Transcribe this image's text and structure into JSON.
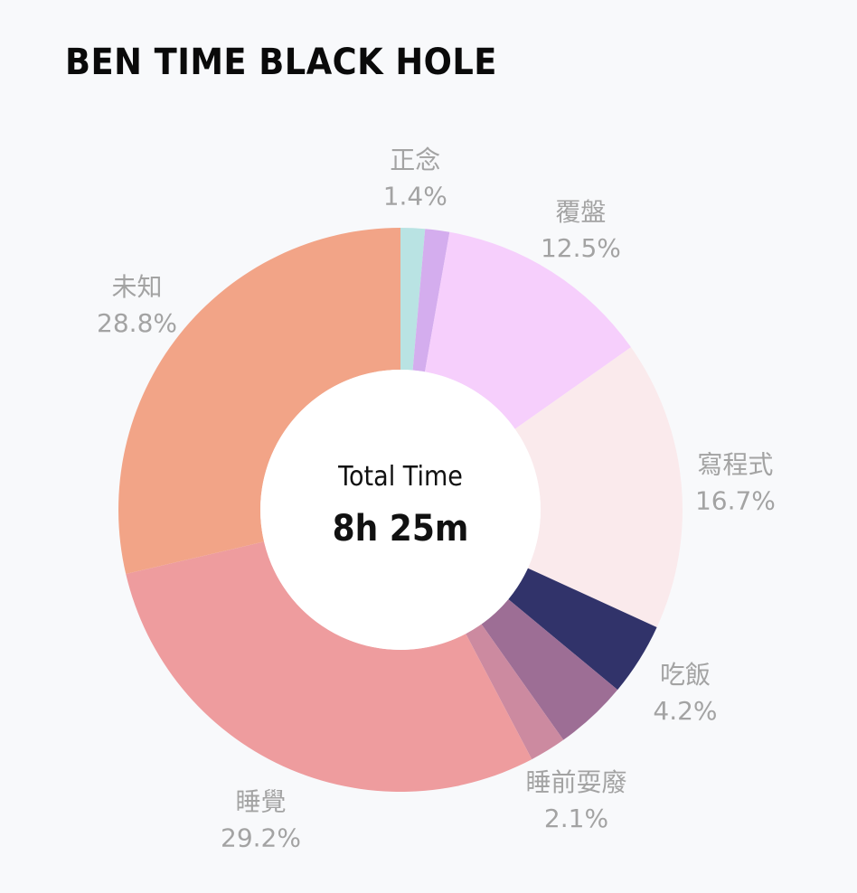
{
  "title": "BEN TIME BLACK HOLE",
  "center": {
    "title": "Total Time",
    "value": "8h 25m"
  },
  "label_color": "#a3a3a3",
  "chart_data": {
    "type": "pie",
    "donut": true,
    "legend": "none",
    "slices": [
      {
        "name": "正念",
        "value": 1.4,
        "pct": "1.4%",
        "color": "#b9e3e3"
      },
      {
        "name": "",
        "value": 1.4,
        "pct": "",
        "color": "#d4adee"
      },
      {
        "name": "覆盤",
        "value": 12.5,
        "pct": "12.5%",
        "color": "#f6cffc"
      },
      {
        "name": "寫程式",
        "value": 16.7,
        "pct": "16.7%",
        "color": "#faeaec"
      },
      {
        "name": "吃飯",
        "value": 4.2,
        "pct": "4.2%",
        "color": "#31336a"
      },
      {
        "name": "",
        "value": 4.2,
        "pct": "",
        "color": "#9d6e95"
      },
      {
        "name": "睡前耍廢",
        "value": 2.1,
        "pct": "2.1%",
        "color": "#cc8aa0"
      },
      {
        "name": "睡覺",
        "value": 29.2,
        "pct": "29.2%",
        "color": "#ee9c9e"
      },
      {
        "name": "未知",
        "value": 28.8,
        "pct": "28.8%",
        "color": "#f2a487"
      }
    ]
  }
}
